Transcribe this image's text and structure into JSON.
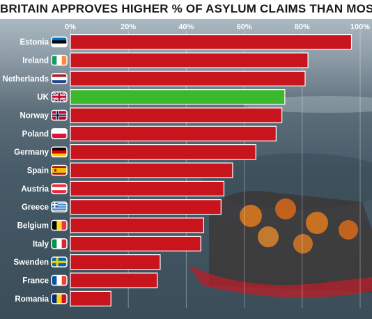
{
  "chart_data": {
    "type": "bar",
    "orientation": "horizontal",
    "title": "BRITAIN APPROVES HIGHER % OF ASYLUM CLAIMS THAN MOST OF EUROPE",
    "xlim": [
      0,
      100
    ],
    "tick_labels": [
      "0%",
      "20%",
      "40%",
      "60%",
      "80%",
      "100%"
    ],
    "tick_values": [
      0,
      20,
      40,
      60,
      80,
      100
    ],
    "grid": true,
    "categories": [
      "Estonia",
      "Ireland",
      "Netherlands",
      "UK",
      "Norway",
      "Poland",
      "Germany",
      "Spain",
      "Austria",
      "Greece",
      "Belgium",
      "Italy",
      "Swenden",
      "France",
      "Romania"
    ],
    "values": [
      97,
      82,
      81,
      74,
      73,
      71,
      64,
      56,
      53,
      52,
      46,
      45,
      31,
      30,
      14
    ],
    "highlight_category": "UK",
    "colors": {
      "bar": "#c8141c",
      "highlight": "#3cb82c",
      "bar_stroke": "#ffffff",
      "text": "#ffffff"
    },
    "flags": [
      "estonia-flag",
      "ireland-flag",
      "netherlands-flag",
      "uk-flag",
      "norway-flag",
      "poland-flag",
      "germany-flag",
      "spain-flag",
      "austria-flag",
      "greece-flag",
      "belgium-flag",
      "italy-flag",
      "sweden-flag",
      "france-flag",
      "romania-flag"
    ]
  }
}
